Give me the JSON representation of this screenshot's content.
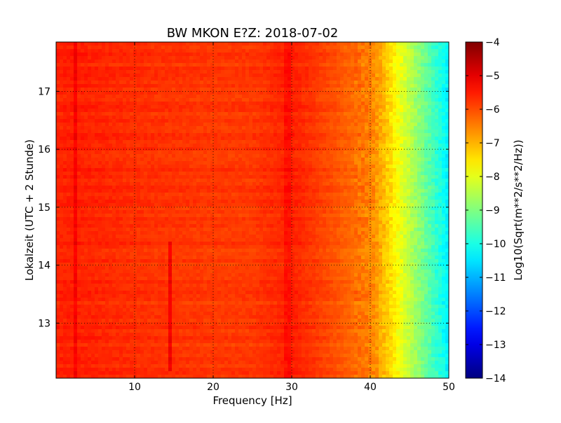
{
  "chart_data": {
    "type": "heatmap",
    "title": "BW MKON E?Z: 2018-07-02",
    "xlabel": "Frequency [Hz]",
    "ylabel": "Lokalzeit (UTC + 2 Stunde)",
    "xlim": [
      0,
      50
    ],
    "ylim": [
      17.85,
      12.05
    ],
    "x_ticks": [
      10,
      20,
      30,
      40,
      50
    ],
    "x_tick_labels": [
      "10",
      "20",
      "30",
      "40",
      "50"
    ],
    "y_ticks": [
      13,
      14,
      15,
      16,
      17
    ],
    "y_tick_labels": [
      "13",
      "14",
      "15",
      "16",
      "17"
    ],
    "grid": true,
    "colormap": "jet",
    "colorbar": {
      "label": "Log10(Sqrt(m**2/s**2/Hz))",
      "range": [
        -14,
        -4
      ],
      "ticks": [
        -4,
        -5,
        -6,
        -7,
        -8,
        -9,
        -10,
        -11,
        -12,
        -13,
        -14
      ],
      "tick_labels": [
        "−4",
        "−5",
        "−6",
        "−7",
        "−8",
        "−9",
        "−10",
        "−11",
        "−12",
        "−13",
        "−14"
      ]
    },
    "frequency_profile": {
      "frequency_hz": [
        0,
        2,
        5,
        10,
        15,
        20,
        25,
        28,
        30,
        33,
        36,
        38,
        40,
        41,
        42,
        43,
        44,
        45,
        46,
        47,
        48,
        49,
        50
      ],
      "log_amplitude": [
        -5.6,
        -5.55,
        -5.6,
        -5.7,
        -5.75,
        -5.8,
        -5.8,
        -5.65,
        -5.55,
        -5.8,
        -6.1,
        -6.3,
        -6.5,
        -6.8,
        -7.2,
        -7.6,
        -8.0,
        -8.4,
        -8.8,
        -9.2,
        -9.6,
        -10.0,
        -10.4
      ]
    },
    "features": [
      {
        "type": "horizontal",
        "time": 12.7,
        "from_hz": 30,
        "to_hz": 44,
        "delta": 0.4
      },
      {
        "type": "horizontal",
        "time": 13.45,
        "from_hz": 11,
        "to_hz": 26,
        "delta": 0.35
      },
      {
        "type": "horizontal",
        "time": 13.45,
        "from_hz": 38,
        "to_hz": 50,
        "delta": 0.7
      },
      {
        "type": "horizontal",
        "time": 14.05,
        "from_hz": 0,
        "to_hz": 50,
        "delta": 0.25
      },
      {
        "type": "horizontal",
        "time": 17.0,
        "from_hz": 33,
        "to_hz": 41,
        "delta": 0.45
      },
      {
        "type": "horizontal",
        "time": 17.5,
        "from_hz": 0,
        "to_hz": 50,
        "delta": 0.45
      },
      {
        "type": "vertical",
        "freq": 2.6,
        "from_time": 12.05,
        "to_time": 17.85,
        "delta": 0.35
      },
      {
        "type": "vertical",
        "freq": 14.6,
        "from_time": 12.2,
        "to_time": 14.4,
        "delta": 0.6
      },
      {
        "type": "vertical",
        "freq": 29.5,
        "from_time": 12.05,
        "to_time": 17.85,
        "delta": 0.2
      }
    ]
  }
}
